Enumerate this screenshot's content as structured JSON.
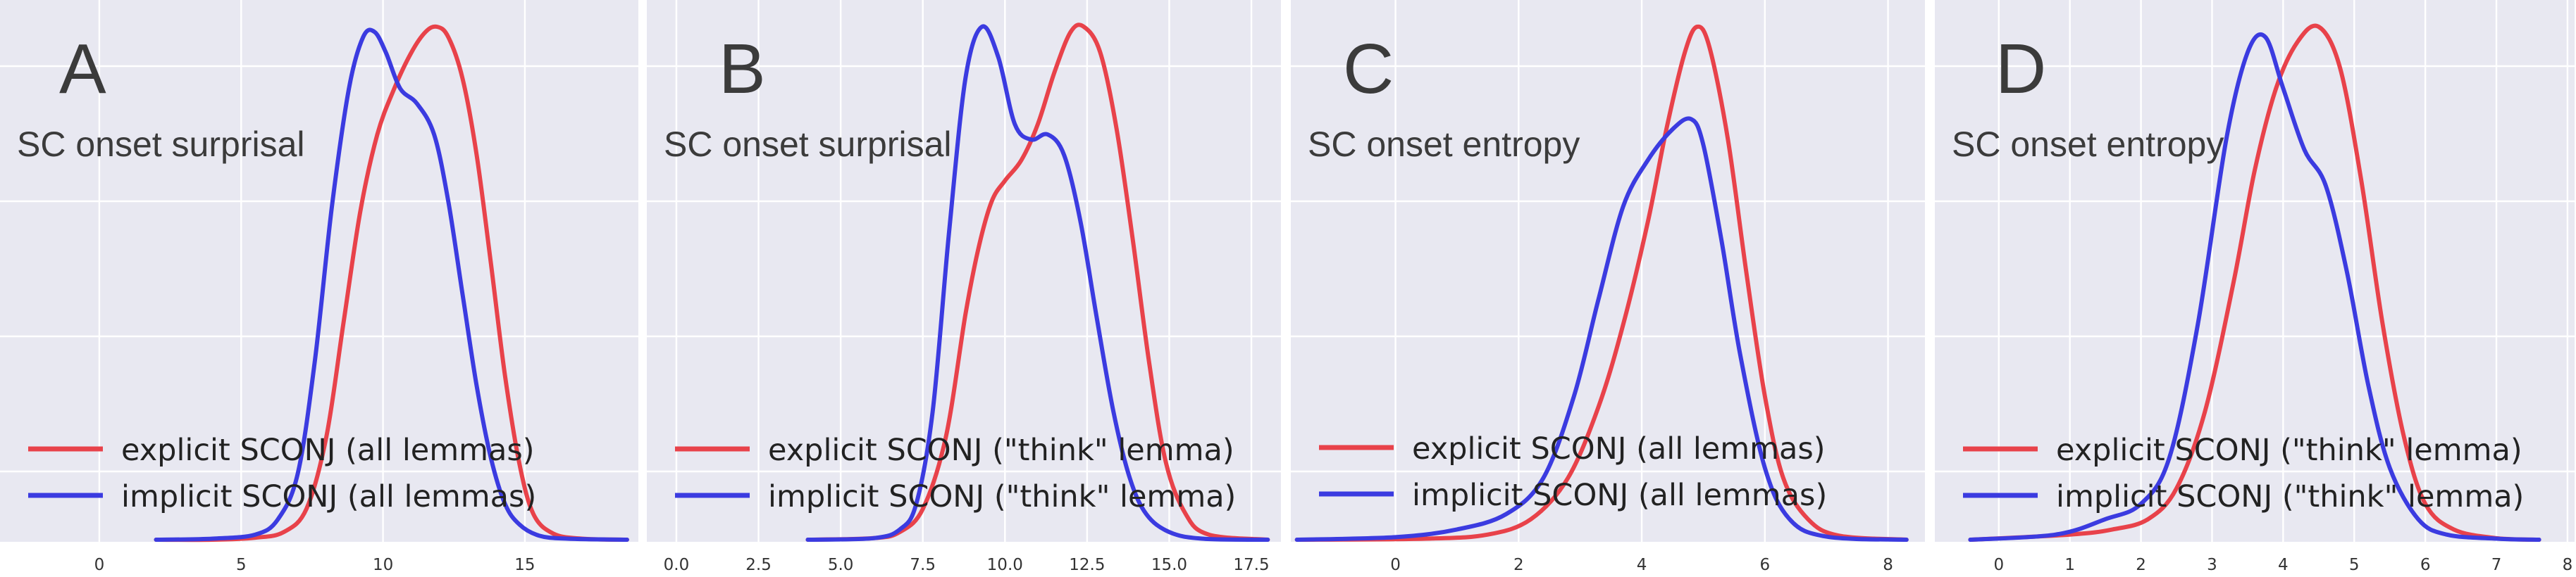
{
  "colors": {
    "panel_bg": "#e8e8f1",
    "grid": "#ffffff",
    "explicit": "#e8424a",
    "implicit": "#3b3be0",
    "text": "#3b3b3b"
  },
  "chart_data": [
    {
      "type": "line",
      "panel_label": "A",
      "title": "SC onset surprisal",
      "xlim": [
        -3.5,
        19
      ],
      "ylim": [
        0,
        1.0
      ],
      "xticks": [
        0,
        5,
        10,
        15
      ],
      "xtick_labels": [
        "0",
        "5",
        "10",
        "15"
      ],
      "grid": true,
      "legend_position": "lower-left",
      "series": [
        {
          "name": "explicit SCONJ (all lemmas)",
          "color": "#e8424a",
          "x": [
            2,
            4,
            5.5,
            6.5,
            7.3,
            8,
            8.6,
            9.2,
            9.8,
            10.4,
            11,
            11.5,
            11.9,
            12.3,
            12.8,
            13.3,
            13.8,
            14.3,
            14.8,
            15.3,
            16,
            17,
            18.6
          ],
          "y": [
            0,
            0,
            0.004,
            0.015,
            0.06,
            0.2,
            0.42,
            0.64,
            0.79,
            0.88,
            0.95,
            0.99,
            1.0,
            0.98,
            0.9,
            0.75,
            0.54,
            0.32,
            0.15,
            0.05,
            0.012,
            0.002,
            0
          ]
        },
        {
          "name": "implicit SCONJ (all lemmas)",
          "color": "#3b3be0",
          "x": [
            2,
            4,
            5.5,
            6.3,
            7,
            7.6,
            8.2,
            8.8,
            9.3,
            9.7,
            10.1,
            10.6,
            11.2,
            11.8,
            12.3,
            12.8,
            13.3,
            13.8,
            14.3,
            14.8,
            15.5,
            16.5,
            18.6
          ],
          "y": [
            0,
            0.002,
            0.01,
            0.04,
            0.13,
            0.35,
            0.65,
            0.88,
            0.98,
            0.99,
            0.95,
            0.88,
            0.85,
            0.79,
            0.66,
            0.48,
            0.3,
            0.16,
            0.07,
            0.03,
            0.008,
            0.002,
            0
          ]
        }
      ]
    },
    {
      "type": "line",
      "panel_label": "B",
      "title": "SC onset surprisal",
      "xlim": [
        -0.9,
        18.4
      ],
      "ylim": [
        0,
        1.0
      ],
      "xticks": [
        0,
        2.5,
        5,
        7.5,
        10,
        12.5,
        15,
        17.5
      ],
      "xtick_labels": [
        "0.0",
        "2.5",
        "5.0",
        "7.5",
        "10.0",
        "12.5",
        "15.0",
        "17.5"
      ],
      "grid": true,
      "legend_position": "lower-left",
      "series": [
        {
          "name": "explicit SCONJ (\"think\" lemma)",
          "color": "#e8424a",
          "x": [
            4,
            6,
            6.8,
            7.5,
            8.2,
            8.8,
            9.2,
            9.6,
            10,
            10.5,
            11,
            11.5,
            12,
            12.4,
            12.9,
            13.4,
            13.9,
            14.4,
            14.9,
            15.5,
            16.2,
            18
          ],
          "y": [
            0,
            0.003,
            0.015,
            0.06,
            0.2,
            0.44,
            0.57,
            0.66,
            0.7,
            0.74,
            0.81,
            0.91,
            0.99,
            1.0,
            0.95,
            0.8,
            0.58,
            0.34,
            0.15,
            0.05,
            0.01,
            0
          ]
        },
        {
          "name": "implicit SCONJ (\"think\" lemma)",
          "color": "#3b3be0",
          "x": [
            4,
            6,
            6.8,
            7.3,
            7.8,
            8.3,
            8.8,
            9.3,
            9.8,
            10.3,
            10.8,
            11.3,
            11.8,
            12.3,
            12.8,
            13.3,
            13.8,
            14.3,
            15,
            16,
            18
          ],
          "y": [
            0,
            0.003,
            0.02,
            0.07,
            0.25,
            0.6,
            0.9,
            1.0,
            0.94,
            0.81,
            0.78,
            0.79,
            0.75,
            0.62,
            0.43,
            0.25,
            0.12,
            0.05,
            0.015,
            0.002,
            0
          ]
        }
      ]
    },
    {
      "type": "line",
      "panel_label": "C",
      "title": "SC onset entropy",
      "xlim": [
        -1.7,
        8.6
      ],
      "ylim": [
        0,
        1.0
      ],
      "xticks": [
        0,
        2,
        4,
        6,
        8
      ],
      "xtick_labels": [
        "0",
        "2",
        "4",
        "6",
        "8"
      ],
      "grid": true,
      "legend_position": "lower-left",
      "series": [
        {
          "name": "explicit SCONJ (all lemmas)",
          "color": "#e8424a",
          "x": [
            -1.6,
            0.5,
            1.5,
            2.2,
            2.8,
            3.3,
            3.7,
            4.1,
            4.4,
            4.7,
            4.9,
            5.1,
            5.4,
            5.7,
            6,
            6.3,
            6.7,
            7.2,
            8.3
          ],
          "y": [
            0,
            0.002,
            0.01,
            0.04,
            0.12,
            0.26,
            0.42,
            0.62,
            0.8,
            0.95,
            1.0,
            0.96,
            0.78,
            0.52,
            0.28,
            0.12,
            0.04,
            0.008,
            0
          ]
        },
        {
          "name": "implicit SCONJ (all lemmas)",
          "color": "#3b3be0",
          "x": [
            -1.6,
            0,
            1,
            1.8,
            2.4,
            2.9,
            3.3,
            3.7,
            4.1,
            4.5,
            4.8,
            5,
            5.3,
            5.6,
            6,
            6.4,
            7,
            8.3
          ],
          "y": [
            0,
            0.005,
            0.02,
            0.05,
            0.12,
            0.28,
            0.47,
            0.65,
            0.74,
            0.8,
            0.82,
            0.77,
            0.58,
            0.36,
            0.14,
            0.04,
            0.006,
            0
          ]
        }
      ]
    },
    {
      "type": "line",
      "panel_label": "D",
      "title": "SC onset entropy",
      "xlim": [
        -0.9,
        8.1
      ],
      "ylim": [
        0,
        1.0
      ],
      "xticks": [
        0,
        1,
        2,
        3,
        4,
        5,
        6,
        7,
        8
      ],
      "xtick_labels": [
        "0",
        "1",
        "2",
        "3",
        "4",
        "5",
        "6",
        "7",
        "8"
      ],
      "grid": true,
      "legend_position": "lower-left",
      "series": [
        {
          "name": "explicit SCONJ (\"think\" lemma)",
          "color": "#e8424a",
          "x": [
            -0.4,
            1,
            1.6,
            2.1,
            2.5,
            2.9,
            3.3,
            3.6,
            3.9,
            4.2,
            4.5,
            4.8,
            5.1,
            5.4,
            5.7,
            6,
            6.4,
            7,
            7.6
          ],
          "y": [
            0,
            0.01,
            0.02,
            0.04,
            0.1,
            0.25,
            0.5,
            0.72,
            0.88,
            0.97,
            1.0,
            0.92,
            0.7,
            0.42,
            0.2,
            0.07,
            0.02,
            0.003,
            0
          ]
        },
        {
          "name": "implicit SCONJ (\"think\" lemma)",
          "color": "#3b3be0",
          "x": [
            -0.4,
            0.8,
            1.5,
            2,
            2.4,
            2.8,
            3.2,
            3.5,
            3.75,
            4,
            4.3,
            4.6,
            4.9,
            5.2,
            5.5,
            5.9,
            6.3,
            7,
            7.6
          ],
          "y": [
            0,
            0.01,
            0.04,
            0.07,
            0.16,
            0.42,
            0.78,
            0.95,
            0.98,
            0.88,
            0.76,
            0.69,
            0.52,
            0.3,
            0.14,
            0.04,
            0.01,
            0.002,
            0
          ]
        }
      ]
    }
  ]
}
